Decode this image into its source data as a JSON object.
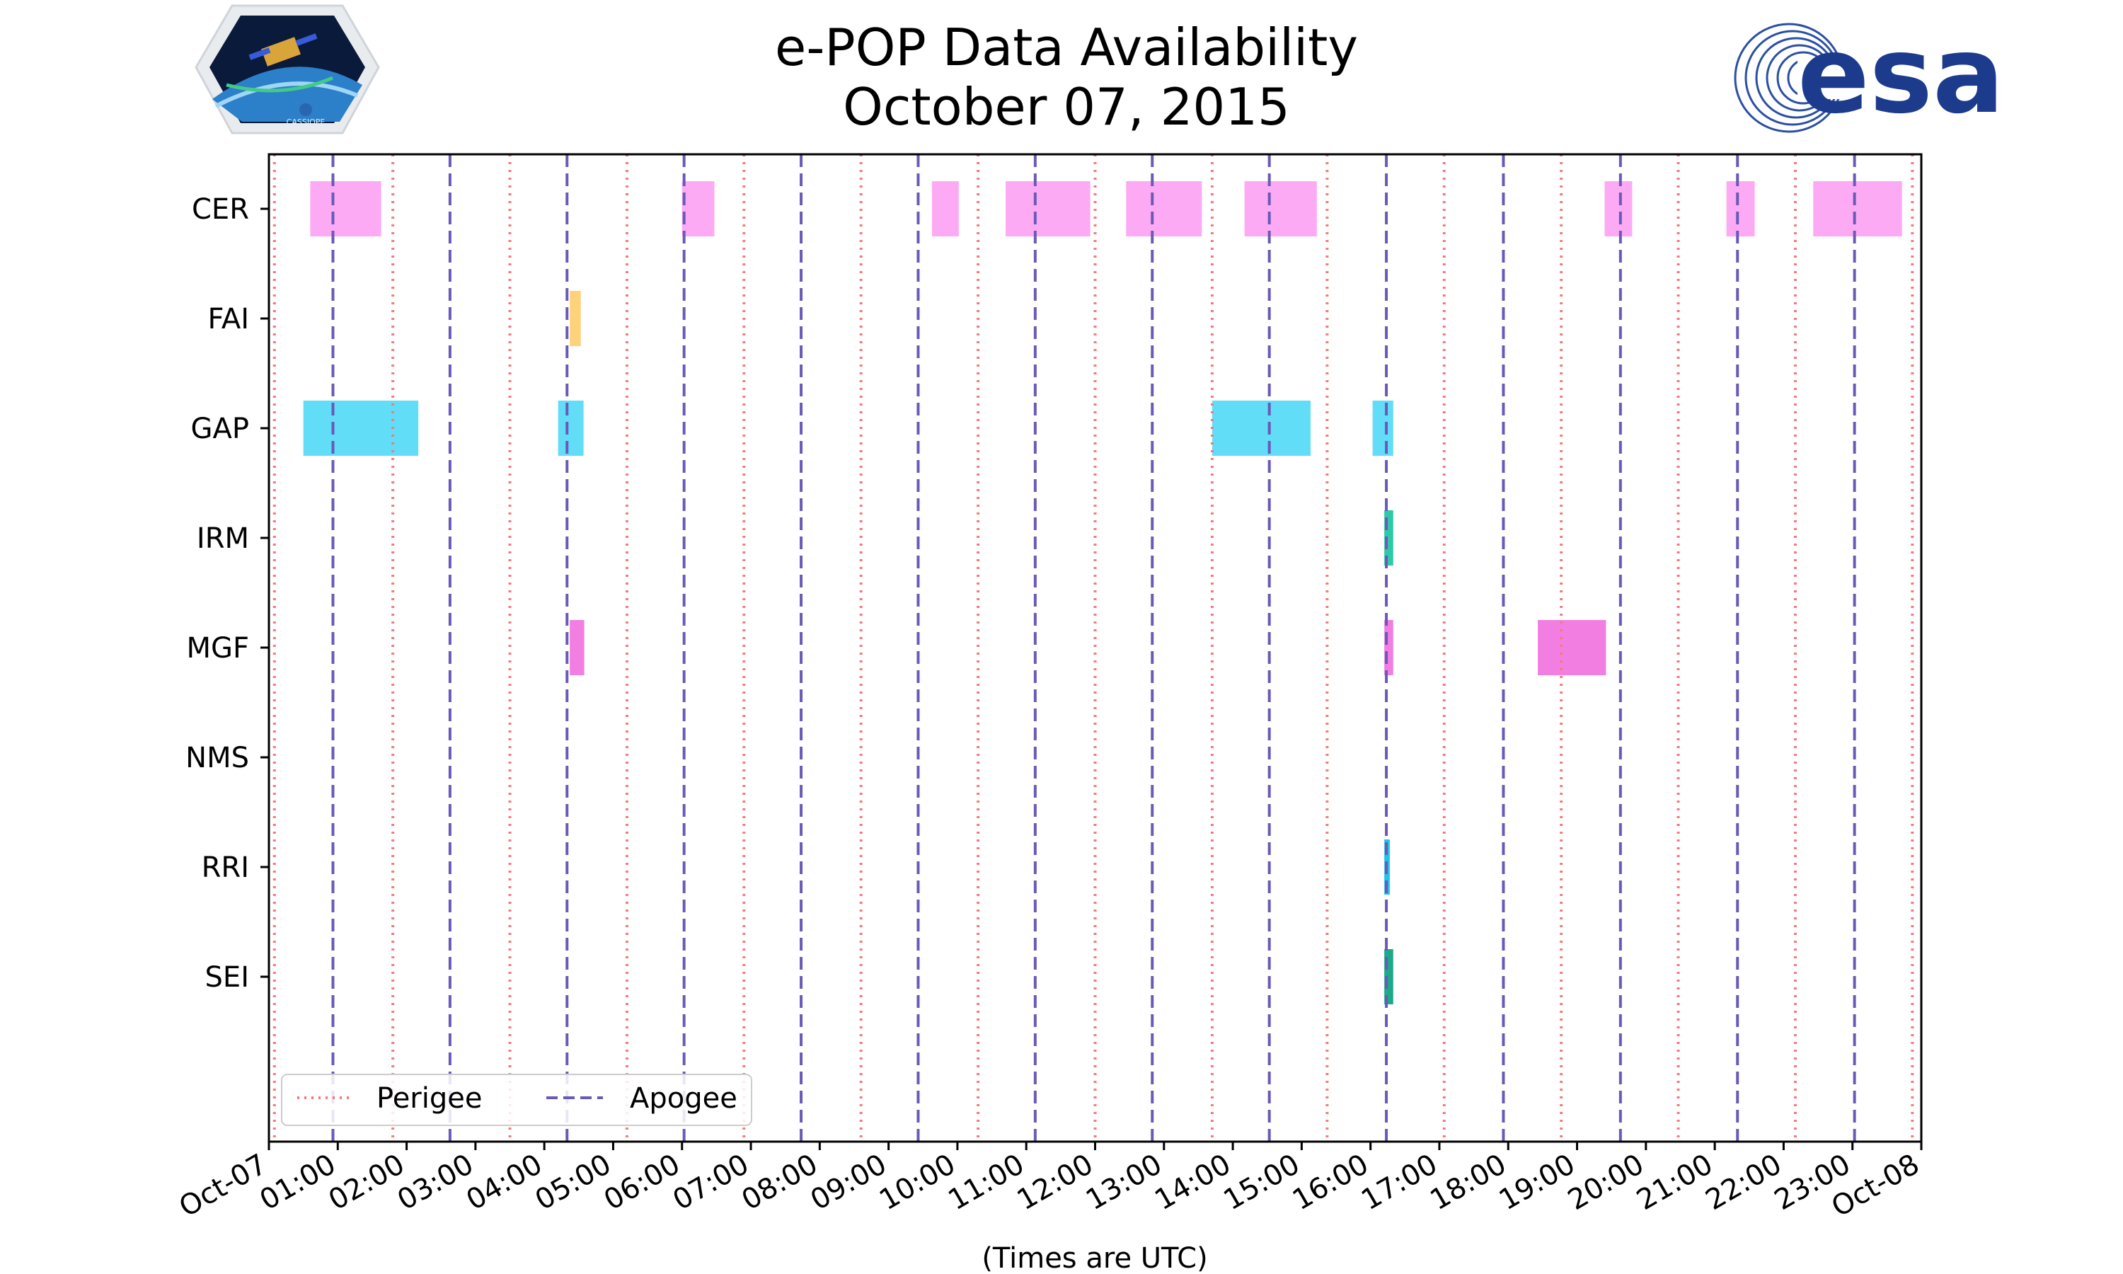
{
  "chart_data": {
    "type": "gantt",
    "title": "e-POP Data Availability",
    "subtitle": "October 07, 2015",
    "xlabel": "(Times are UTC)",
    "x_range_hours": [
      0,
      24
    ],
    "x_tick_labels": [
      "Oct-07",
      "01:00",
      "02:00",
      "03:00",
      "04:00",
      "05:00",
      "06:00",
      "07:00",
      "08:00",
      "09:00",
      "10:00",
      "11:00",
      "12:00",
      "13:00",
      "14:00",
      "15:00",
      "16:00",
      "17:00",
      "18:00",
      "19:00",
      "20:00",
      "21:00",
      "22:00",
      "23:00",
      "Oct-08"
    ],
    "instruments": [
      "CER",
      "FAI",
      "GAP",
      "IRM",
      "MGF",
      "NMS",
      "RRI",
      "SEI"
    ],
    "colors": {
      "CER": "#fdaaf5",
      "FAI": "#fdd27a",
      "GAP": "#62ddf8",
      "IRM": "#2ec9a8",
      "MGF": "#f27ee2",
      "NMS": "#aaaaaa",
      "RRI": "#22c2ea",
      "SEI": "#1fa98a",
      "perigee": "#f47a7a",
      "apogee": "#6a5ab8"
    },
    "intervals": {
      "CER": [
        [
          0.6,
          1.63
        ],
        [
          6.0,
          6.47
        ],
        [
          9.63,
          10.02
        ],
        [
          10.7,
          11.93
        ],
        [
          12.45,
          13.55
        ],
        [
          14.17,
          15.22
        ],
        [
          19.4,
          19.8
        ],
        [
          21.17,
          21.58
        ],
        [
          22.43,
          23.72
        ]
      ],
      "FAI": [
        [
          4.37,
          4.53
        ]
      ],
      "GAP": [
        [
          0.5,
          2.17
        ],
        [
          4.2,
          4.57
        ],
        [
          13.7,
          15.13
        ],
        [
          16.03,
          16.33
        ]
      ],
      "IRM": [
        [
          16.2,
          16.33
        ]
      ],
      "MGF": [
        [
          4.37,
          4.58
        ],
        [
          16.2,
          16.33
        ],
        [
          18.43,
          19.42
        ]
      ],
      "NMS": [],
      "RRI": [
        [
          16.2,
          16.28
        ]
      ],
      "SEI": [
        [
          16.2,
          16.33
        ]
      ]
    },
    "perigee_hours": [
      0.08,
      1.8,
      3.5,
      5.2,
      6.9,
      8.6,
      10.3,
      12.0,
      13.7,
      15.37,
      17.07,
      18.77,
      20.47,
      22.17,
      23.87
    ],
    "apogee_hours": [
      0.93,
      2.63,
      4.33,
      6.03,
      7.73,
      9.43,
      11.13,
      12.83,
      14.53,
      16.23,
      17.93,
      19.63,
      21.33,
      23.03
    ],
    "legend": [
      {
        "label": "Perigee",
        "style": "dotted"
      },
      {
        "label": "Apogee",
        "style": "dashed"
      }
    ]
  },
  "logos": {
    "left_logo_text": "CASSIOPE",
    "right_logo_text": "esa"
  }
}
